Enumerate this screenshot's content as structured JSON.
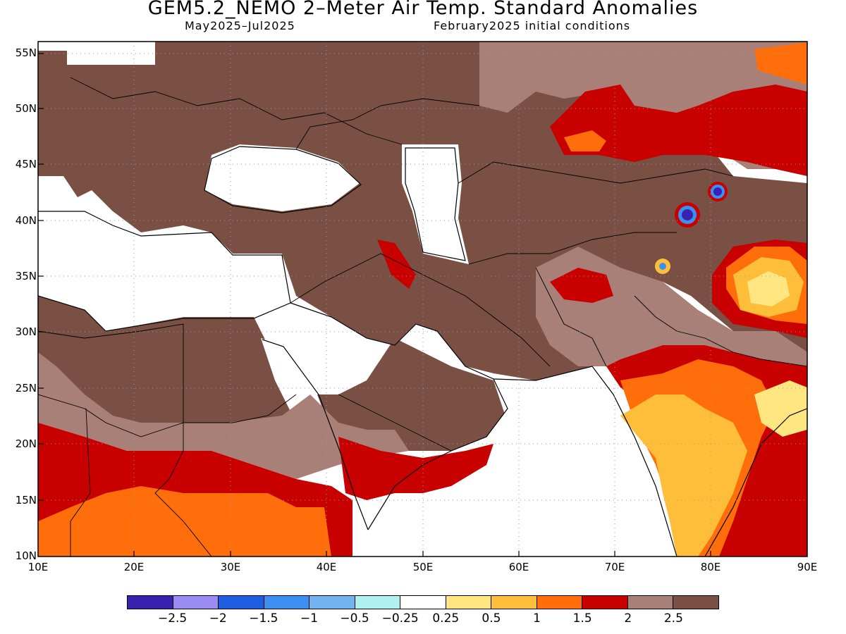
{
  "header": {
    "title": "GEM5.2_NEMO 2–Meter Air Temp. Standard Anomalies",
    "period": "May2025–Jul2025",
    "init": "February2025 initial conditions"
  },
  "axes": {
    "lat_labels": [
      "55N",
      "50N",
      "45N",
      "40N",
      "35N",
      "30N",
      "25N",
      "20N",
      "15N",
      "10N"
    ],
    "lon_labels": [
      "10E",
      "20E",
      "30E",
      "40E",
      "50E",
      "60E",
      "70E",
      "80E",
      "90E"
    ]
  },
  "colorbar": {
    "colors": [
      "#3a22b0",
      "#9a8cf2",
      "#1e5de0",
      "#3a8ff0",
      "#72b4f2",
      "#b0f0f0",
      "#ffffff",
      "#ffe680",
      "#ffbe3a",
      "#ff6e0a",
      "#c80000",
      "#a88078",
      "#7a5045"
    ],
    "labels": [
      "−2.5",
      "−2",
      "−1.5",
      "−1",
      "−0.5",
      "−0.25",
      "0.25",
      "0.5",
      "1",
      "1.5",
      "2",
      "2.5"
    ]
  },
  "map": {
    "lon_range": [
      10,
      90
    ],
    "lat_range": [
      10,
      56
    ],
    "grid": "dotted"
  }
}
